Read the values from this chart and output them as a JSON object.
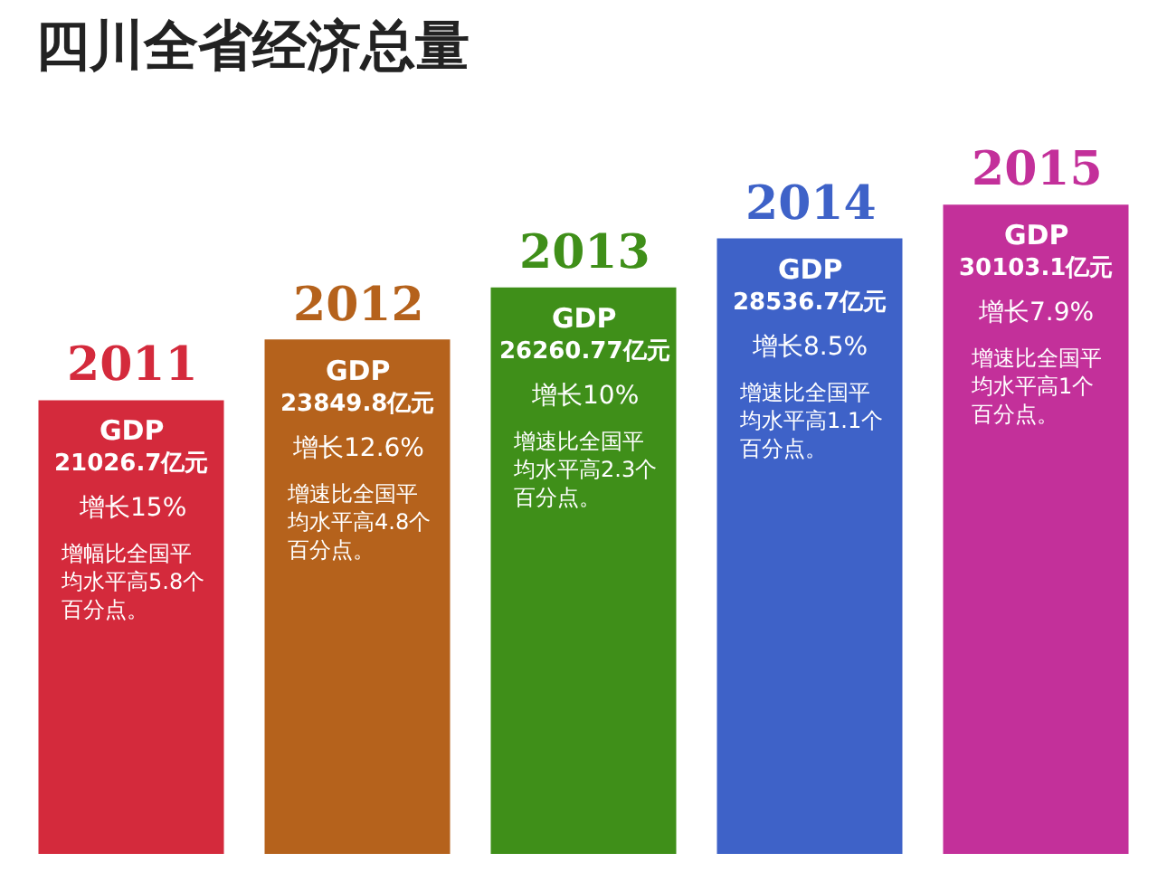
{
  "chart_data": {
    "type": "bar",
    "title": "四川全省经济总量",
    "categories": [
      "2011",
      "2012",
      "2013",
      "2014",
      "2015"
    ],
    "series": [
      {
        "name": "GDP",
        "values": [
          21026.7,
          23849.8,
          26260.77,
          28536.7,
          30103.1
        ],
        "colors": [
          "#d42a3c",
          "#b5621c",
          "#3f8f19",
          "#3e62c8",
          "#c3309a"
        ],
        "value_labels": [
          "21026.7亿元",
          "23849.8亿元",
          "26260.77亿元",
          "28536.7亿元",
          "30103.1亿元"
        ]
      }
    ],
    "annotations": [
      "增长15%",
      "增长12.6%",
      "增长10%",
      "增长8.5%",
      "增长7.9%",
      "增幅比全国平均水平高5.8个百分点。",
      "增速比全国平均水平高4.8个百分点。",
      "增速比全国平均水平高2.3个百分点。",
      "增速比全国平均水平高1.1个百分点。",
      "增速比全国平均水平高1个百分点。"
    ],
    "legend": false
  }
}
